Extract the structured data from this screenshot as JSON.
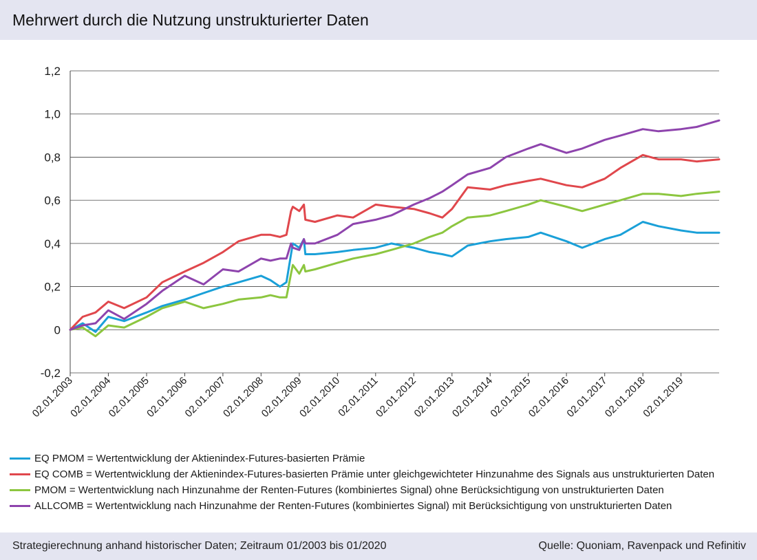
{
  "header": {
    "title": "Mehrwert durch die Nutzung unstrukturierter Daten"
  },
  "footer": {
    "left": "Strategierechnung anhand historischer Daten; Zeitraum 01/2003 bis 01/2020",
    "right": "Quelle: Quoniam, Ravenpack und Refinitiv"
  },
  "legend": [
    {
      "text": "EQ PMOM = Wertentwicklung der Aktienindex-Futures-basierten Prämie",
      "color": "#1aa0d8"
    },
    {
      "text": "EQ COMB = Wertentwicklung der Aktienindex-Futures-basierten Prämie unter gleichgewichteter Hinzunahme des Signals aus unstrukturierten Daten",
      "color": "#e0474c"
    },
    {
      "text": "PMOM = Wertentwicklung nach Hinzunahme der Renten-Futures (kombiniertes Signal) ohne Berücksichtigung von unstrukturierten Daten",
      "color": "#8cc63f"
    },
    {
      "text": "ALLCOMB = Wertentwicklung nach Hinzunahme der Renten-Futures (kombiniertes Signal) mit Berücksichtigung von unstrukturierten Daten",
      "color": "#8e44ad"
    }
  ],
  "chart_data": {
    "type": "line",
    "ylim": [
      -0.2,
      1.2
    ],
    "yticks": [
      -0.2,
      0,
      0.2,
      0.4,
      0.6,
      0.8,
      1.0,
      1.2
    ],
    "ytick_labels": [
      "-0,2",
      "0",
      "0,2",
      "0,4",
      "0,6",
      "0,8",
      "1,0",
      "1,2"
    ],
    "xlim": [
      "2003-01-02",
      "2020-01-02"
    ],
    "xtick_labels": [
      "02.01.2003",
      "02.01.2004",
      "02.01.2005",
      "02.01.2006",
      "02.01.2007",
      "02.01.2008",
      "02.01.2009",
      "02.01.2010",
      "02.01.2011",
      "02.01.2012",
      "02.01.2013",
      "02.01.2014",
      "02.01.2015",
      "02.01.2016",
      "02.01.2017",
      "02.01.2018",
      "02.01.2019"
    ],
    "grid": "horizontal",
    "series": [
      {
        "name": "EQ PMOM",
        "color": "#1aa0d8",
        "x": [
          "2003-01-02",
          "2003-05-01",
          "2003-09-01",
          "2004-01-02",
          "2004-06-01",
          "2005-01-02",
          "2005-06-01",
          "2006-01-02",
          "2006-07-01",
          "2007-01-02",
          "2007-06-01",
          "2008-01-02",
          "2008-04-01",
          "2008-07-01",
          "2008-09-01",
          "2008-10-15",
          "2008-11-01",
          "2009-01-02",
          "2009-02-15",
          "2009-03-01",
          "2009-06-01",
          "2010-01-02",
          "2010-06-01",
          "2011-01-02",
          "2011-06-01",
          "2012-01-02",
          "2012-06-01",
          "2012-10-01",
          "2013-01-02",
          "2013-06-01",
          "2014-01-02",
          "2014-06-01",
          "2015-01-02",
          "2015-05-01",
          "2016-01-02",
          "2016-06-01",
          "2017-01-02",
          "2017-06-01",
          "2018-01-02",
          "2018-06-01",
          "2019-01-02",
          "2019-06-01",
          "2020-01-02"
        ],
        "values": [
          0.0,
          0.03,
          -0.01,
          0.06,
          0.04,
          0.08,
          0.11,
          0.14,
          0.17,
          0.2,
          0.22,
          0.25,
          0.23,
          0.2,
          0.22,
          0.35,
          0.4,
          0.38,
          0.42,
          0.35,
          0.35,
          0.36,
          0.37,
          0.38,
          0.4,
          0.38,
          0.36,
          0.35,
          0.34,
          0.39,
          0.41,
          0.42,
          0.43,
          0.45,
          0.41,
          0.38,
          0.42,
          0.44,
          0.5,
          0.48,
          0.46,
          0.45,
          0.45
        ]
      },
      {
        "name": "EQ COMB",
        "color": "#e0474c",
        "x": [
          "2003-01-02",
          "2003-05-01",
          "2003-09-01",
          "2004-01-02",
          "2004-06-01",
          "2005-01-02",
          "2005-06-01",
          "2006-01-02",
          "2006-07-01",
          "2007-01-02",
          "2007-06-01",
          "2008-01-02",
          "2008-04-01",
          "2008-07-01",
          "2008-09-01",
          "2008-10-15",
          "2008-11-01",
          "2009-01-02",
          "2009-02-15",
          "2009-03-01",
          "2009-06-01",
          "2010-01-02",
          "2010-06-01",
          "2011-01-02",
          "2011-06-01",
          "2012-01-02",
          "2012-06-01",
          "2012-10-01",
          "2013-01-02",
          "2013-06-01",
          "2014-01-02",
          "2014-06-01",
          "2015-01-02",
          "2015-05-01",
          "2016-01-02",
          "2016-06-01",
          "2017-01-02",
          "2017-06-01",
          "2018-01-02",
          "2018-06-01",
          "2019-01-02",
          "2019-06-01",
          "2020-01-02"
        ],
        "values": [
          0.0,
          0.06,
          0.08,
          0.13,
          0.1,
          0.15,
          0.22,
          0.27,
          0.31,
          0.36,
          0.41,
          0.44,
          0.44,
          0.43,
          0.44,
          0.55,
          0.57,
          0.55,
          0.58,
          0.51,
          0.5,
          0.53,
          0.52,
          0.58,
          0.57,
          0.56,
          0.54,
          0.52,
          0.56,
          0.66,
          0.65,
          0.67,
          0.69,
          0.7,
          0.67,
          0.66,
          0.7,
          0.75,
          0.81,
          0.79,
          0.79,
          0.78,
          0.79
        ]
      },
      {
        "name": "PMOM",
        "color": "#8cc63f",
        "x": [
          "2003-01-02",
          "2003-05-01",
          "2003-09-01",
          "2004-01-02",
          "2004-06-01",
          "2005-01-02",
          "2005-06-01",
          "2006-01-02",
          "2006-07-01",
          "2007-01-02",
          "2007-06-01",
          "2008-01-02",
          "2008-04-01",
          "2008-07-01",
          "2008-09-01",
          "2008-10-15",
          "2008-11-01",
          "2009-01-02",
          "2009-02-15",
          "2009-03-01",
          "2009-06-01",
          "2010-01-02",
          "2010-06-01",
          "2011-01-02",
          "2011-06-01",
          "2012-01-02",
          "2012-06-01",
          "2012-10-01",
          "2013-01-02",
          "2013-06-01",
          "2014-01-02",
          "2014-06-01",
          "2015-01-02",
          "2015-05-01",
          "2016-01-02",
          "2016-06-01",
          "2017-01-02",
          "2017-06-01",
          "2018-01-02",
          "2018-06-01",
          "2019-01-02",
          "2019-06-01",
          "2020-01-02"
        ],
        "values": [
          0.0,
          0.01,
          -0.03,
          0.02,
          0.01,
          0.06,
          0.1,
          0.13,
          0.1,
          0.12,
          0.14,
          0.15,
          0.16,
          0.15,
          0.15,
          0.26,
          0.3,
          0.26,
          0.3,
          0.27,
          0.28,
          0.31,
          0.33,
          0.35,
          0.37,
          0.4,
          0.43,
          0.45,
          0.48,
          0.52,
          0.53,
          0.55,
          0.58,
          0.6,
          0.57,
          0.55,
          0.58,
          0.6,
          0.63,
          0.63,
          0.62,
          0.63,
          0.64
        ]
      },
      {
        "name": "ALLCOMB",
        "color": "#8e44ad",
        "x": [
          "2003-01-02",
          "2003-05-01",
          "2003-09-01",
          "2004-01-02",
          "2004-06-01",
          "2005-01-02",
          "2005-06-01",
          "2006-01-02",
          "2006-07-01",
          "2007-01-02",
          "2007-06-01",
          "2008-01-02",
          "2008-04-01",
          "2008-07-01",
          "2008-09-01",
          "2008-10-15",
          "2008-11-01",
          "2009-01-02",
          "2009-02-15",
          "2009-03-01",
          "2009-06-01",
          "2010-01-02",
          "2010-06-01",
          "2011-01-02",
          "2011-06-01",
          "2012-01-02",
          "2012-06-01",
          "2012-10-01",
          "2013-01-02",
          "2013-06-01",
          "2014-01-02",
          "2014-06-01",
          "2015-01-02",
          "2015-05-01",
          "2016-01-02",
          "2016-06-01",
          "2017-01-02",
          "2017-06-01",
          "2018-01-02",
          "2018-06-01",
          "2019-01-02",
          "2019-06-01",
          "2020-01-02"
        ],
        "values": [
          0.0,
          0.02,
          0.03,
          0.09,
          0.05,
          0.12,
          0.18,
          0.25,
          0.21,
          0.28,
          0.27,
          0.33,
          0.32,
          0.33,
          0.33,
          0.4,
          0.38,
          0.37,
          0.42,
          0.4,
          0.4,
          0.44,
          0.49,
          0.51,
          0.53,
          0.58,
          0.61,
          0.64,
          0.67,
          0.72,
          0.75,
          0.8,
          0.84,
          0.86,
          0.82,
          0.84,
          0.88,
          0.9,
          0.93,
          0.92,
          0.93,
          0.94,
          0.97
        ]
      }
    ]
  }
}
